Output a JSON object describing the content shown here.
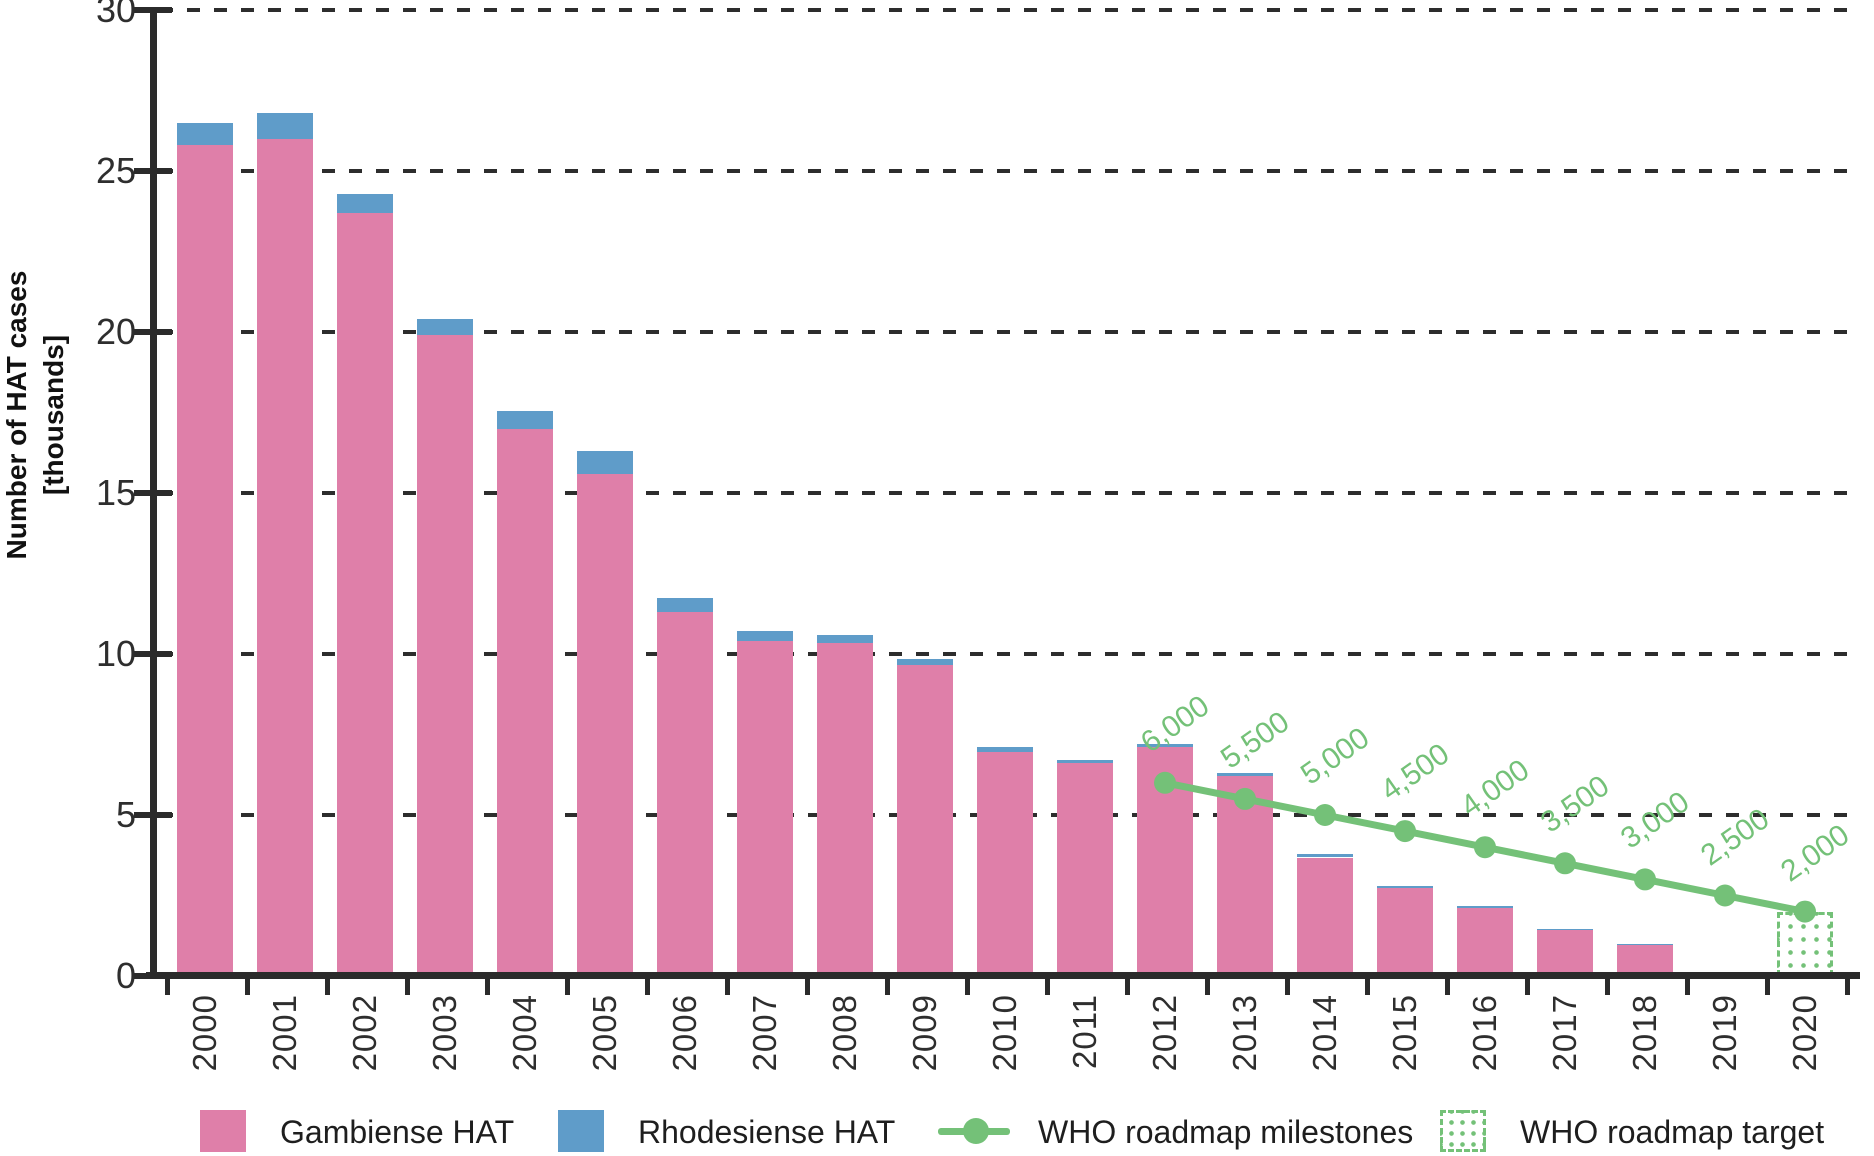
{
  "chart_data": {
    "type": "bar",
    "title": "",
    "ylabel_line1": "Number of HAT cases",
    "ylabel_line2": "[thousands]",
    "unit": "thousands of cases",
    "ylim": [
      0,
      30
    ],
    "yticks": [
      0,
      5,
      10,
      15,
      20,
      25,
      30
    ],
    "ytick_labels": [
      "0",
      "5",
      "10",
      "15",
      "20",
      "25",
      "30"
    ],
    "grid": "dashed horizontal",
    "categories": [
      "2000",
      "2001",
      "2002",
      "2003",
      "2004",
      "2005",
      "2006",
      "2007",
      "2008",
      "2009",
      "2010",
      "2011",
      "2012",
      "2013",
      "2014",
      "2015",
      "2016",
      "2017",
      "2018",
      "2019",
      "2020"
    ],
    "series": [
      {
        "name": "Gambiense HAT",
        "color": "#DF7FA9",
        "values": [
          25.8,
          26.0,
          23.7,
          19.9,
          17.0,
          15.6,
          11.3,
          10.4,
          10.35,
          9.65,
          6.95,
          6.6,
          7.1,
          6.2,
          3.68,
          2.73,
          2.1,
          1.42,
          0.95,
          0,
          0
        ]
      },
      {
        "name": "Rhodesiense HAT",
        "color": "#5F9CC9",
        "values": [
          0.7,
          0.8,
          0.6,
          0.5,
          0.55,
          0.7,
          0.45,
          0.3,
          0.25,
          0.2,
          0.15,
          0.1,
          0.1,
          0.1,
          0.12,
          0.07,
          0.06,
          0.03,
          0.03,
          0,
          0
        ]
      }
    ],
    "milestones": {
      "name": "WHO roadmap milestones",
      "color": "#74C178",
      "years": [
        "2012",
        "2013",
        "2014",
        "2015",
        "2016",
        "2017",
        "2018",
        "2019",
        "2020"
      ],
      "values": [
        6.0,
        5.5,
        5.0,
        4.5,
        4.0,
        3.5,
        3.0,
        2.5,
        2.0
      ],
      "labels": [
        "6,000",
        "5,500",
        "5,000",
        "4,500",
        "4,000",
        "3,500",
        "3,000",
        "2,500",
        "2,000"
      ]
    },
    "target": {
      "name": "WHO roadmap target",
      "year": "2020",
      "value": 2.0,
      "style": "dotted-pattern",
      "color": "#74C178"
    }
  },
  "legend": {
    "items": [
      {
        "label": "Gambiense HAT",
        "swatch": "pink-fill"
      },
      {
        "label": "Rhodesiense HAT",
        "swatch": "blue-fill"
      },
      {
        "label": "WHO roadmap milestones",
        "swatch": "green-line-dot"
      },
      {
        "label": "WHO roadmap target",
        "swatch": "green-dotted-box"
      }
    ]
  },
  "colors": {
    "gambiense": "#DF7FA9",
    "rhodesiense": "#5F9CC9",
    "roadmap_green": "#74C178",
    "axis": "#2b2b2b",
    "text": "#1e1e1e",
    "background": "#ffffff"
  }
}
